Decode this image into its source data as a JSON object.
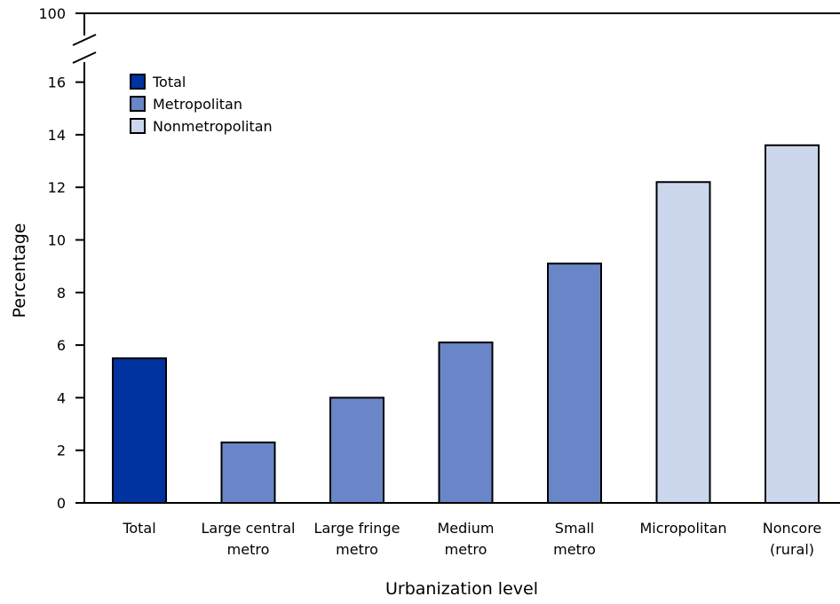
{
  "chart_data": {
    "type": "bar",
    "title": "",
    "xlabel": "Urbanization level",
    "ylabel": "Percentage",
    "ylim": [
      0,
      16
    ],
    "y_ticks": [
      0,
      2,
      4,
      6,
      8,
      10,
      12,
      14,
      16
    ],
    "y_break_top_label": "100",
    "grid": false,
    "legend_position": "top-left",
    "categories": [
      {
        "lines": [
          "Total"
        ]
      },
      {
        "lines": [
          "Large central",
          "metro"
        ]
      },
      {
        "lines": [
          "Large fringe",
          "metro"
        ]
      },
      {
        "lines": [
          "Medium",
          "metro"
        ]
      },
      {
        "lines": [
          "Small",
          "metro"
        ]
      },
      {
        "lines": [
          "Micropolitan"
        ]
      },
      {
        "lines": [
          "Noncore",
          "(rural)"
        ]
      }
    ],
    "values": [
      5.5,
      2.3,
      4.0,
      6.1,
      9.1,
      12.2,
      13.6
    ],
    "groups": [
      0,
      1,
      1,
      1,
      1,
      2,
      2
    ],
    "legend": [
      {
        "name": "Total",
        "color": "#0033a0"
      },
      {
        "name": "Metropolitan",
        "color": "#6a86c8"
      },
      {
        "name": "Nonmetropolitan",
        "color": "#ccd7ee"
      }
    ]
  }
}
